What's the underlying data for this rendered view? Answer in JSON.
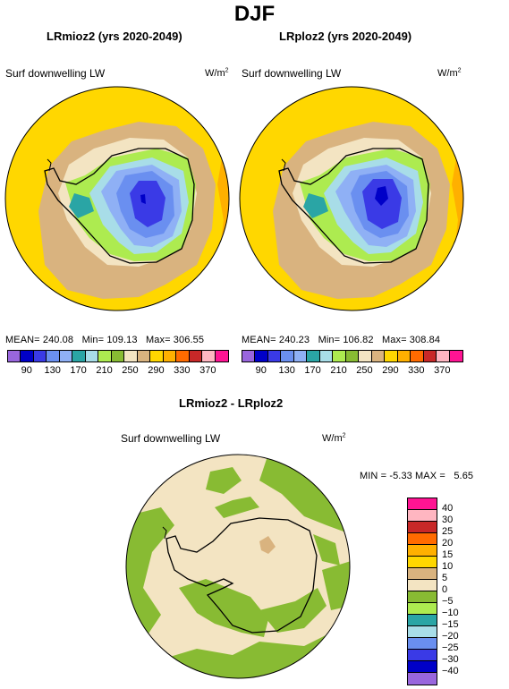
{
  "figure": {
    "title": "DJF"
  },
  "panels": [
    {
      "title": "LRmioz2 (yrs 2020-2049)",
      "variable": "Surf downwelling LW",
      "units_base": "W/m",
      "units_exp": "2",
      "stats": {
        "mean_label": "MEAN=",
        "mean": "240.08",
        "min_label": "Min=",
        "min": "109.13",
        "max_label": "Max=",
        "max": "306.55"
      }
    },
    {
      "title": "LRploz2 (yrs 2020-2049)",
      "variable": "Surf downwelling LW",
      "units_base": "W/m",
      "units_exp": "2",
      "stats": {
        "mean_label": "MEAN=",
        "mean": "240.23",
        "min_label": "Min=",
        "min": "106.82",
        "max_label": "Max=",
        "max": "308.84"
      }
    },
    {
      "title": "LRmioz2 - LRploz2",
      "variable": "Surf downwelling LW",
      "units_base": "W/m",
      "units_exp": "2",
      "stats": {
        "min_label": "MIN =",
        "min": "-5.33",
        "max_label": "MAX =",
        "max": "5.65"
      }
    }
  ],
  "colorbar_abs": {
    "colors": [
      "#9966dd",
      "#0000c8",
      "#3a3ae6",
      "#6a8ff0",
      "#8fb0f5",
      "#2aa5a5",
      "#a8dde8",
      "#adeb50",
      "#88bb33",
      "#f3e4c2",
      "#d9b37f",
      "#ffd700",
      "#ffb000",
      "#ff6b00",
      "#c82828",
      "#ffb6c1",
      "#ff1493"
    ],
    "labels": [
      "90",
      "130",
      "170",
      "210",
      "250",
      "290",
      "330",
      "370"
    ]
  },
  "colorbar_diff": {
    "colors": [
      "#ff1493",
      "#ffb6c1",
      "#c82828",
      "#ff6b00",
      "#ffb000",
      "#ffd700",
      "#d9b37f",
      "#f3e4c2",
      "#88bb33",
      "#adeb50",
      "#2aa5a5",
      "#a8dde8",
      "#6a8ff0",
      "#3a3ae6",
      "#0000c8",
      "#9966dd"
    ],
    "labels": [
      "40",
      "30",
      "25",
      "20",
      "15",
      "10",
      "5",
      "0",
      "−5",
      "−10",
      "−15",
      "−20",
      "−25",
      "−30",
      "−40"
    ]
  }
}
